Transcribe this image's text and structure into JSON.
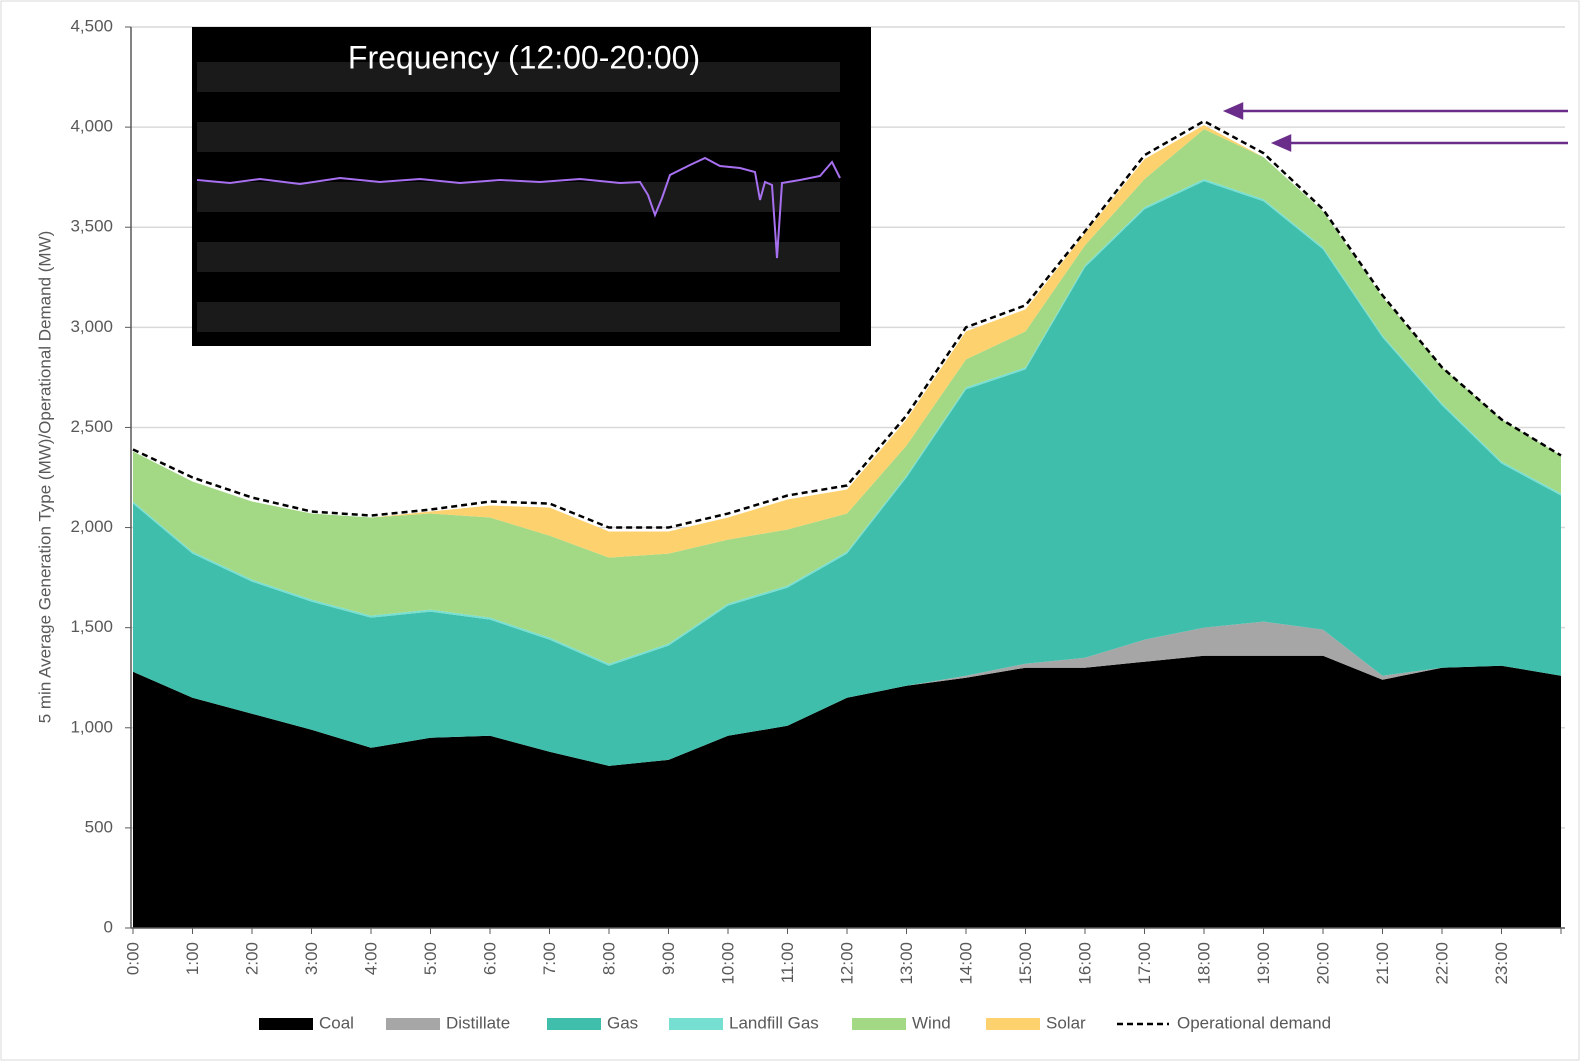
{
  "chart_data": {
    "type": "area",
    "stacked": true,
    "y_label": "5 min Average Generation Type (MW)/Operational Demand (MW)",
    "inset_title": "Frequency (12:00-20:00)",
    "categories": [
      "0:00",
      "1:00",
      "2:00",
      "3:00",
      "4:00",
      "5:00",
      "6:00",
      "7:00",
      "8:00",
      "9:00",
      "10:00",
      "11:00",
      "12:00",
      "13:00",
      "14:00",
      "15:00",
      "16:00",
      "17:00",
      "18:00",
      "19:00",
      "20:00",
      "21:00",
      "22:00",
      "23:00",
      null
    ],
    "series": [
      {
        "name": "Coal",
        "color": "#000000",
        "values": [
          1280,
          1150,
          1070,
          990,
          900,
          950,
          960,
          880,
          810,
          840,
          960,
          1010,
          1150,
          1210,
          1250,
          1300,
          1300,
          1330,
          1360,
          1360,
          1360,
          1240,
          1300,
          1310,
          1260
        ]
      },
      {
        "name": "Distillate",
        "color": "#a6a6a6",
        "values": [
          0,
          0,
          0,
          0,
          0,
          0,
          0,
          0,
          0,
          0,
          0,
          0,
          0,
          0,
          10,
          20,
          50,
          110,
          140,
          170,
          130,
          20,
          0,
          0,
          0
        ]
      },
      {
        "name": "Gas",
        "color": "#3fbfab",
        "values": [
          840,
          720,
          660,
          640,
          650,
          630,
          580,
          560,
          500,
          570,
          650,
          690,
          720,
          1040,
          1430,
          1470,
          1950,
          2150,
          2230,
          2100,
          1900,
          1690,
          1310,
          1010,
          900
        ]
      },
      {
        "name": "Landfill Gas",
        "color": "#76dfd2",
        "values": [
          10,
          10,
          10,
          10,
          10,
          10,
          10,
          10,
          10,
          10,
          10,
          10,
          10,
          10,
          10,
          10,
          10,
          10,
          10,
          10,
          10,
          10,
          10,
          10,
          10
        ]
      },
      {
        "name": "Wind",
        "color": "#a3d985",
        "values": [
          250,
          350,
          390,
          430,
          490,
          480,
          500,
          510,
          530,
          450,
          320,
          280,
          190,
          150,
          140,
          180,
          100,
          140,
          250,
          210,
          180,
          190,
          180,
          210,
          190
        ]
      },
      {
        "name": "Solar",
        "color": "#fdd26e",
        "values": [
          0,
          0,
          0,
          0,
          0,
          10,
          60,
          140,
          130,
          110,
          110,
          150,
          120,
          130,
          140,
          110,
          60,
          100,
          20,
          0,
          0,
          0,
          0,
          0,
          0
        ]
      },
      {
        "name": "Operational demand",
        "color": "#000000",
        "kind": "line",
        "dashed": true,
        "values": [
          2390,
          2250,
          2150,
          2080,
          2060,
          2090,
          2130,
          2120,
          2000,
          2000,
          2070,
          2160,
          2210,
          2560,
          3000,
          3110,
          3480,
          3860,
          4030,
          3870,
          3590,
          3160,
          2800,
          2540,
          2360
        ]
      }
    ],
    "ylim": [
      0,
      4500
    ],
    "yticks": [
      0,
      500,
      {
        "value": 1000,
        "label": "1,000"
      },
      {
        "value": 1500,
        "label": "1,500"
      },
      {
        "value": 2000,
        "label": "2,000"
      },
      {
        "value": 2500,
        "label": "2,500"
      },
      {
        "value": 3000,
        "label": "3,000"
      },
      {
        "value": 3500,
        "label": "3,500"
      },
      {
        "value": 4000,
        "label": "4,000"
      },
      {
        "value": 4500,
        "label": "4,500"
      }
    ],
    "grid": true,
    "legend": "bottom"
  }
}
